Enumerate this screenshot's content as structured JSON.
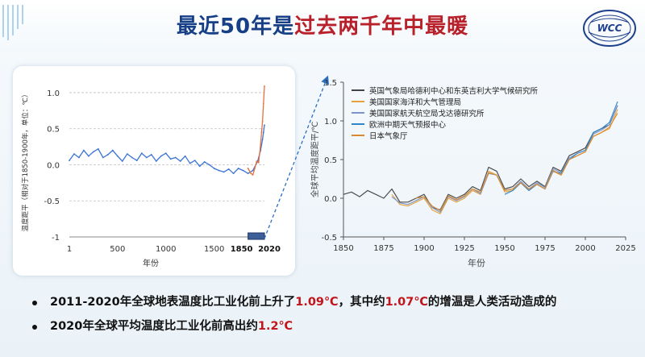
{
  "title": {
    "part1": "最近50年是",
    "part2": "过去两千年中最暖"
  },
  "logo_text": "WCC",
  "colors": {
    "title_blue": "#163f86",
    "title_red": "#b8202a",
    "highlight_red": "#c0151b",
    "series_blue": "#3a74d6",
    "series_orange": "#e8703a"
  },
  "chart_data": [
    {
      "type": "line",
      "title": "",
      "xlabel": "年份",
      "ylabel": "温度距平（相对于1850-1900年，单位：℃）",
      "xlim": [
        1,
        2020
      ],
      "ylim": [
        -1,
        1.1
      ],
      "x_ticks": [
        "1",
        "500",
        "1000",
        "1500",
        "1850",
        "2020"
      ],
      "y_ticks": [
        "1.0",
        "0.5",
        "0.0",
        "-0.5",
        "-1"
      ],
      "grid": "horizontal",
      "highlight_range": [
        1850,
        2020
      ],
      "series": [
        {
          "color": "#3a74d6",
          "x": [
            1,
            50,
            100,
            150,
            200,
            250,
            300,
            350,
            400,
            450,
            500,
            550,
            600,
            650,
            700,
            750,
            800,
            850,
            900,
            950,
            1000,
            1050,
            1100,
            1150,
            1200,
            1250,
            1300,
            1350,
            1400,
            1450,
            1500,
            1550,
            1600,
            1650,
            1700,
            1750,
            1800,
            1850,
            1900,
            1950,
            1980,
            2000,
            2010,
            2020
          ],
          "y": [
            0.06,
            0.15,
            0.1,
            0.2,
            0.12,
            0.18,
            0.22,
            0.1,
            0.14,
            0.2,
            0.12,
            0.05,
            0.15,
            0.1,
            0.06,
            0.16,
            0.1,
            0.14,
            0.05,
            0.12,
            0.16,
            0.08,
            0.1,
            0.05,
            0.12,
            0.02,
            0.06,
            -0.02,
            0.04,
            0.0,
            -0.05,
            -0.08,
            -0.1,
            -0.06,
            -0.12,
            -0.05,
            -0.08,
            -0.12,
            -0.08,
            0.05,
            0.2,
            0.35,
            0.45,
            0.55
          ]
        },
        {
          "color": "#e8703a",
          "x": [
            1850,
            1880,
            1900,
            1920,
            1940,
            1960,
            1980,
            1990,
            2000,
            2010,
            2020
          ],
          "y": [
            -0.05,
            -0.12,
            -0.14,
            -0.05,
            0.05,
            0.03,
            0.28,
            0.45,
            0.6,
            0.85,
            1.09
          ]
        }
      ]
    },
    {
      "type": "line",
      "title": "",
      "xlabel": "年份",
      "ylabel": "全球平均温度距平/℃",
      "xlim": [
        1850,
        2025
      ],
      "ylim": [
        -0.5,
        1.5
      ],
      "x_ticks": [
        1850,
        1875,
        1900,
        1925,
        1950,
        1975,
        2000,
        2025
      ],
      "y_ticks": [
        -0.5,
        0.0,
        0.5,
        1.0,
        1.5
      ],
      "legend_position": "top-left",
      "x": [
        1850,
        1855,
        1860,
        1865,
        1870,
        1875,
        1880,
        1885,
        1890,
        1895,
        1900,
        1905,
        1910,
        1915,
        1920,
        1925,
        1930,
        1935,
        1940,
        1945,
        1950,
        1955,
        1960,
        1965,
        1970,
        1975,
        1980,
        1985,
        1990,
        1995,
        2000,
        2005,
        2010,
        2015,
        2020
      ],
      "series": [
        {
          "name": "英国气象局哈德利中心和东英吉利大学气候研究所",
          "color": "#444444",
          "values": [
            0.05,
            0.08,
            0.02,
            0.1,
            0.05,
            0.0,
            0.12,
            -0.05,
            -0.05,
            0.0,
            0.05,
            -0.12,
            -0.15,
            0.05,
            0.0,
            0.05,
            0.15,
            0.1,
            0.4,
            0.35,
            0.12,
            0.15,
            0.25,
            0.15,
            0.22,
            0.15,
            0.4,
            0.35,
            0.55,
            0.6,
            0.65,
            0.85,
            0.9,
            0.95,
            1.2
          ]
        },
        {
          "name": "美国国家海洋和大气管理局",
          "color": "#e6a13c",
          "values": [
            null,
            null,
            null,
            null,
            null,
            null,
            0.05,
            -0.08,
            -0.1,
            -0.05,
            0.0,
            -0.15,
            -0.2,
            0.0,
            -0.05,
            0.0,
            0.1,
            0.05,
            0.35,
            0.3,
            0.08,
            0.1,
            0.2,
            0.1,
            0.18,
            0.12,
            0.35,
            0.3,
            0.5,
            0.55,
            0.6,
            0.8,
            0.85,
            0.9,
            1.15
          ]
        },
        {
          "name": "美国国家航天航空局戈达德研究所",
          "color": "#7b93c8",
          "values": [
            null,
            null,
            null,
            null,
            null,
            null,
            0.02,
            -0.06,
            -0.08,
            -0.03,
            0.02,
            -0.12,
            -0.18,
            0.02,
            -0.03,
            0.02,
            0.12,
            0.06,
            0.32,
            0.3,
            0.1,
            0.12,
            0.22,
            0.12,
            0.2,
            0.14,
            0.38,
            0.33,
            0.52,
            0.58,
            0.62,
            0.83,
            0.88,
            0.95,
            1.2
          ]
        },
        {
          "name": "欧洲中期天气预报中心",
          "color": "#2f86c8",
          "values": [
            null,
            null,
            null,
            null,
            null,
            null,
            null,
            null,
            null,
            null,
            null,
            null,
            null,
            null,
            null,
            null,
            null,
            null,
            null,
            null,
            0.05,
            0.1,
            0.2,
            0.1,
            0.18,
            0.12,
            0.35,
            0.32,
            0.5,
            0.58,
            0.62,
            0.85,
            0.9,
            0.98,
            1.25
          ]
        },
        {
          "name": "日本气象厅",
          "color": "#d98a2e",
          "values": [
            null,
            null,
            null,
            null,
            null,
            null,
            null,
            null,
            null,
            0.0,
            0.02,
            -0.1,
            -0.16,
            0.03,
            -0.02,
            0.03,
            0.12,
            0.08,
            0.33,
            0.3,
            0.1,
            0.12,
            0.2,
            0.12,
            0.18,
            0.12,
            0.36,
            0.3,
            0.5,
            0.55,
            0.6,
            0.8,
            0.85,
            0.92,
            1.1
          ]
        }
      ]
    }
  ],
  "bullets": [
    {
      "pre": "2011-2020年全球地表温度比工业化前上升了",
      "hl1": "1.09℃",
      "mid": "，其中约",
      "hl2": "1.07℃",
      "post": "的增温是人类活动造成的"
    },
    {
      "pre": "2020年全球平均温度比工业化前高出约",
      "hl1": "1.2℃"
    }
  ]
}
